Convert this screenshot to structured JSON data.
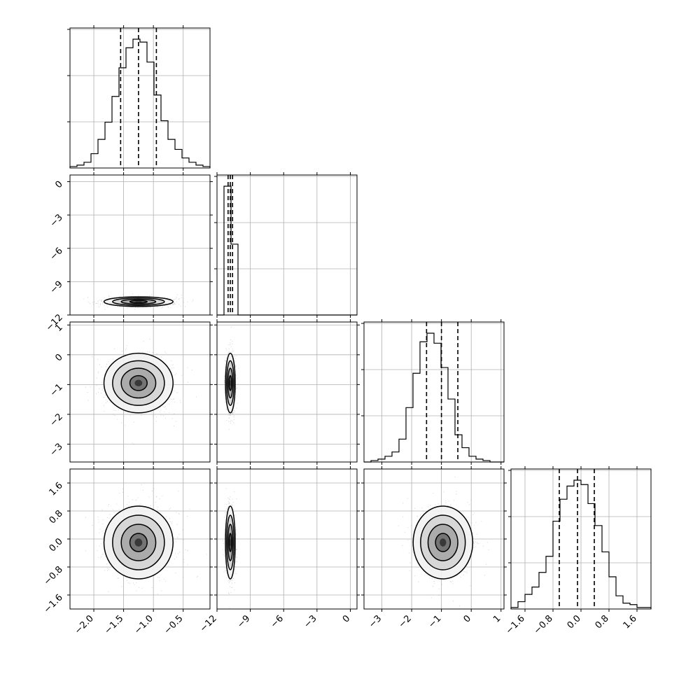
{
  "colors": {
    "frame": "#000000",
    "grid": "#b0b0b0",
    "scatter": "#8c8c8c",
    "ink": "#000000"
  },
  "chart_data": {
    "type": "corner",
    "grid": true,
    "parameters": [
      {
        "id": "p0",
        "range": [
          -2.4,
          -0.05
        ],
        "ticks": [
          -2.0,
          -1.5,
          -1.0,
          -0.5
        ],
        "tick_labels": [
          "−2.0",
          "−1.5",
          "−1.0",
          "−0.5"
        ],
        "mean": -1.25,
        "sd": 0.29,
        "quantiles": [
          -1.55,
          -1.25,
          -0.95
        ]
      },
      {
        "id": "p1",
        "range": [
          -12.0,
          0.6
        ],
        "ticks": [
          -12,
          -9,
          -6,
          -3,
          0
        ],
        "tick_labels": [
          "−12",
          "−9",
          "−6",
          "−3",
          "0"
        ],
        "mean": -10.8,
        "sd": 0.22,
        "quantiles": [
          -11.0,
          -10.8,
          -10.6
        ]
      },
      {
        "id": "p2",
        "range": [
          -3.6,
          1.1
        ],
        "ticks": [
          -3,
          -2,
          -1,
          0,
          1
        ],
        "tick_labels": [
          "−3",
          "−2",
          "−1",
          "0",
          "1"
        ],
        "mean": -0.95,
        "sd": 0.5,
        "quantiles": [
          -1.5,
          -1.0,
          -0.45
        ]
      },
      {
        "id": "p3",
        "range": [
          -2.0,
          2.0
        ],
        "ticks": [
          -1.6,
          -0.8,
          0.0,
          0.8,
          1.6
        ],
        "tick_labels": [
          "−1.6",
          "−0.8",
          "0.0",
          "0.8",
          "1.6"
        ],
        "mean": -0.1,
        "sd": 0.52,
        "quantiles": [
          -0.62,
          -0.1,
          0.38
        ]
      }
    ],
    "histograms": [
      {
        "param": "p0",
        "bins": 20,
        "x_range": [
          -2.4,
          -0.05
        ],
        "counts": [
          1,
          2,
          4,
          10,
          20,
          32,
          50,
          70,
          84,
          90,
          88,
          74,
          51,
          33,
          20,
          13,
          7,
          4,
          2,
          1
        ]
      },
      {
        "param": "p1",
        "bins": 20,
        "x_range": [
          -12.0,
          0.6
        ],
        "counts": [
          0,
          100,
          55,
          0,
          0,
          0,
          0,
          0,
          0,
          0,
          0,
          0,
          0,
          0,
          0,
          0,
          0,
          0,
          0,
          0
        ]
      },
      {
        "param": "p2",
        "bins": 20,
        "x_range": [
          -3.6,
          1.1
        ],
        "counts": [
          0,
          1,
          2,
          4,
          7,
          16,
          38,
          62,
          84,
          90,
          83,
          66,
          44,
          19,
          10,
          4,
          2,
          1,
          0,
          0
        ]
      },
      {
        "param": "p3",
        "bins": 20,
        "x_range": [
          -2.0,
          2.0
        ],
        "counts": [
          1,
          5,
          10,
          15,
          25,
          36,
          60,
          75,
          84,
          88,
          85,
          72,
          57,
          39,
          22,
          9,
          4,
          3,
          1,
          1
        ]
      }
    ],
    "pairs": [
      {
        "x": "p0",
        "y": "p1",
        "correlation": 0.0
      },
      {
        "x": "p0",
        "y": "p2",
        "correlation": 0.0
      },
      {
        "x": "p1",
        "y": "p2",
        "correlation": 0.0
      },
      {
        "x": "p0",
        "y": "p3",
        "correlation": 0.0
      },
      {
        "x": "p1",
        "y": "p3",
        "correlation": 0.0
      },
      {
        "x": "p2",
        "y": "p3",
        "correlation": 0.0
      }
    ],
    "contour_levels_sigma": [
      0.5,
      1.0,
      1.5,
      2.0
    ]
  }
}
